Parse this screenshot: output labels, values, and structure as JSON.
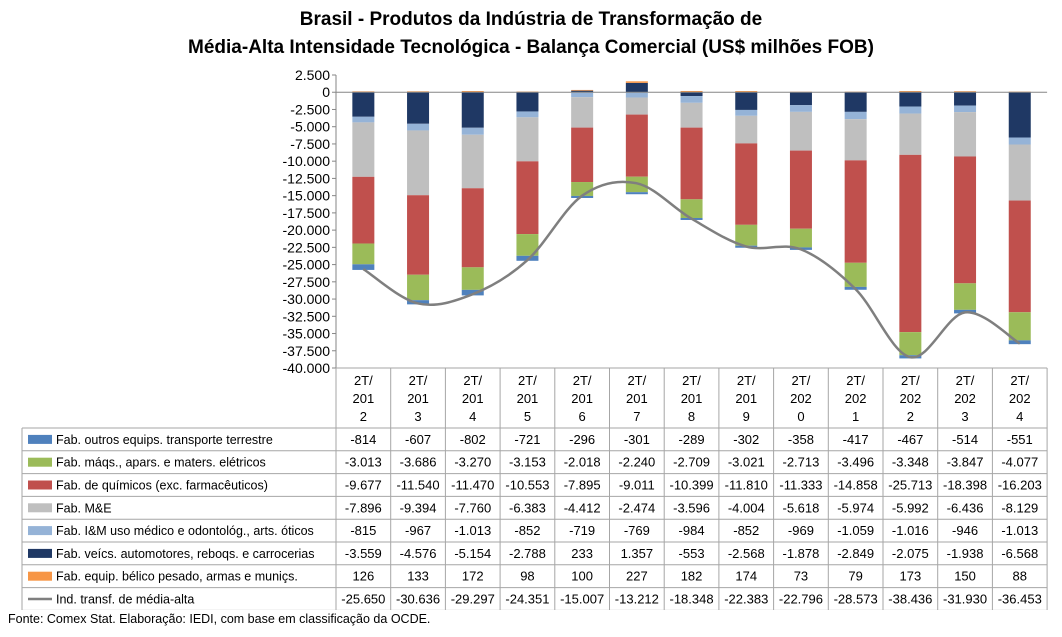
{
  "chart_data": {
    "type": "bar",
    "stacked": true,
    "title": "Brasil - Produtos da Indústria de Transformação de",
    "subtitle": "Média-Alta Intensidade Tecnológica - Balança Comercial (US$ milhões FOB)",
    "ylim": [
      -40000,
      2500
    ],
    "ytick_labels": [
      "2.500",
      "0",
      "-2.500",
      "-5.000",
      "-7.500",
      "-10.000",
      "-12.500",
      "-15.000",
      "-17.500",
      "-20.000",
      "-22.500",
      "-25.000",
      "-27.500",
      "-30.000",
      "-32.500",
      "-35.000",
      "-37.500",
      "-40.000"
    ],
    "categories": [
      "2T/2012",
      "2T/2013",
      "2T/2014",
      "2T/2015",
      "2T/2016",
      "2T/2017",
      "2T/2018",
      "2T/2019",
      "2T/2020",
      "2T/2021",
      "2T/2022",
      "2T/2023",
      "2T/2024"
    ],
    "category_labels": [
      [
        "2T/",
        "201",
        "2"
      ],
      [
        "2T/",
        "201",
        "3"
      ],
      [
        "2T/",
        "201",
        "4"
      ],
      [
        "2T/",
        "201",
        "5"
      ],
      [
        "2T/",
        "201",
        "6"
      ],
      [
        "2T/",
        "201",
        "7"
      ],
      [
        "2T/",
        "201",
        "8"
      ],
      [
        "2T/",
        "201",
        "9"
      ],
      [
        "2T/",
        "202",
        "0"
      ],
      [
        "2T/",
        "202",
        "1"
      ],
      [
        "2T/",
        "202",
        "2"
      ],
      [
        "2T/",
        "202",
        "3"
      ],
      [
        "2T/",
        "202",
        "4"
      ]
    ],
    "series": [
      {
        "name": "Fab. outros equips. transporte terrestre",
        "color": "#4f81bd",
        "type": "bar",
        "values": [
          -814,
          -607,
          -802,
          -721,
          -296,
          -301,
          -289,
          -302,
          -358,
          -417,
          -467,
          -514,
          -551
        ],
        "labels": [
          "-814",
          "-607",
          "-802",
          "-721",
          "-296",
          "-301",
          "-289",
          "-302",
          "-358",
          "-417",
          "-467",
          "-514",
          "-551"
        ]
      },
      {
        "name": "Fab. máqs., apars. e maters. elétricos",
        "color": "#9bbb59",
        "type": "bar",
        "values": [
          -3013,
          -3686,
          -3270,
          -3153,
          -2018,
          -2240,
          -2709,
          -3021,
          -2713,
          -3496,
          -3348,
          -3847,
          -4077
        ],
        "labels": [
          "-3.013",
          "-3.686",
          "-3.270",
          "-3.153",
          "-2.018",
          "-2.240",
          "-2.709",
          "-3.021",
          "-2.713",
          "-3.496",
          "-3.348",
          "-3.847",
          "-4.077"
        ]
      },
      {
        "name": "Fab. de químicos (exc. farmacêuticos)",
        "color": "#c0504d",
        "type": "bar",
        "values": [
          -9677,
          -11540,
          -11470,
          -10553,
          -7895,
          -9011,
          -10399,
          -11810,
          -11333,
          -14858,
          -25713,
          -18398,
          -16203
        ],
        "labels": [
          "-9.677",
          "-11.540",
          "-11.470",
          "-10.553",
          "-7.895",
          "-9.011",
          "-10.399",
          "-11.810",
          "-11.333",
          "-14.858",
          "-25.713",
          "-18.398",
          "-16.203"
        ]
      },
      {
        "name": "Fab. M&E",
        "color": "#bfbfbf",
        "type": "bar",
        "values": [
          -7896,
          -9394,
          -7760,
          -6383,
          -4412,
          -2474,
          -3596,
          -4004,
          -5618,
          -5974,
          -5992,
          -6436,
          -8129
        ],
        "labels": [
          "-7.896",
          "-9.394",
          "-7.760",
          "-6.383",
          "-4.412",
          "-2.474",
          "-3.596",
          "-4.004",
          "-5.618",
          "-5.974",
          "-5.992",
          "-6.436",
          "-8.129"
        ]
      },
      {
        "name": "Fab. I&M uso médico e odontológ., arts. óticos",
        "color": "#95b3d7",
        "type": "bar",
        "values": [
          -815,
          -967,
          -1013,
          -852,
          -719,
          -769,
          -984,
          -852,
          -969,
          -1059,
          -1016,
          -946,
          -1013
        ],
        "labels": [
          "-815",
          "-967",
          "-1.013",
          "-852",
          "-719",
          "-769",
          "-984",
          "-852",
          "-969",
          "-1.059",
          "-1.016",
          "-946",
          "-1.013"
        ]
      },
      {
        "name": "Fab. veícs. automotores, reboqs. e carrocerias",
        "color": "#1f3864",
        "type": "bar",
        "values": [
          -3559,
          -4576,
          -5154,
          -2788,
          233,
          1357,
          -553,
          -2568,
          -1878,
          -2849,
          -2075,
          -1938,
          -6568
        ],
        "labels": [
          "-3.559",
          "-4.576",
          "-5.154",
          "-2.788",
          "233",
          "1.357",
          "-553",
          "-2.568",
          "-1.878",
          "-2.849",
          "-2.075",
          "-1.938",
          "-6.568"
        ]
      },
      {
        "name": "Fab. equip. bélico pesado, armas e muniçs.",
        "color": "#f79646",
        "type": "bar",
        "values": [
          126,
          133,
          172,
          98,
          100,
          227,
          182,
          174,
          73,
          79,
          173,
          150,
          88
        ],
        "labels": [
          "126",
          "133",
          "172",
          "98",
          "100",
          "227",
          "182",
          "174",
          "73",
          "79",
          "173",
          "150",
          "88"
        ]
      },
      {
        "name": "Ind. transf. de média-alta",
        "color": "#7f7f7f",
        "type": "line",
        "values": [
          -25650,
          -30636,
          -29297,
          -24351,
          -15007,
          -13212,
          -18348,
          -22383,
          -22796,
          -28573,
          -38436,
          -31930,
          -36453
        ],
        "labels": [
          "-25.650",
          "-30.636",
          "-29.297",
          "-24.351",
          "-15.007",
          "-13.212",
          "-18.348",
          "-22.383",
          "-22.796",
          "-28.573",
          "-38.436",
          "-31.930",
          "-36.453"
        ]
      }
    ],
    "grid": false,
    "legend": "data-table"
  },
  "source": "Fonte: Comex Stat. Elaboração: IEDI, com base em classificação da OCDE."
}
